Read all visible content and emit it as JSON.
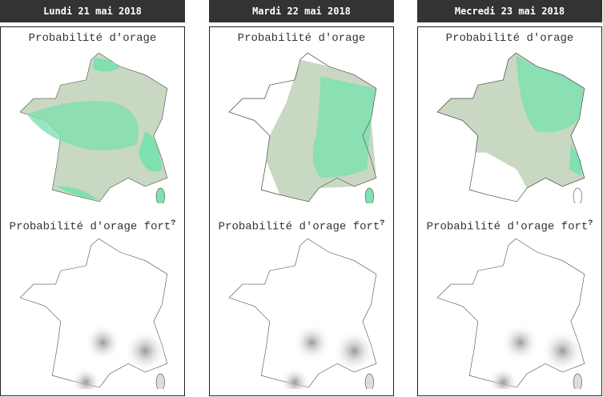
{
  "days": [
    {
      "label": "Lundi 21 mai 2018",
      "title1": "Probabilité d'orage",
      "title2": "Probabilité d'orage fort",
      "help": "?"
    },
    {
      "label": "Mardi 22 mai 2018",
      "title1": "Probabilité d'orage",
      "title2": "Probabilité d'orage fort",
      "help": "?"
    },
    {
      "label": "Mecredi 23 mai 2018",
      "title1": "Probabilité d'orage",
      "title2": "Probabilité d'orage fort",
      "help": "?"
    }
  ],
  "colors": {
    "header_bg": "#333333",
    "low_prob": "#c9d8c2",
    "high_prob": "#7fe0b0",
    "relief": "#bdbdbd"
  }
}
